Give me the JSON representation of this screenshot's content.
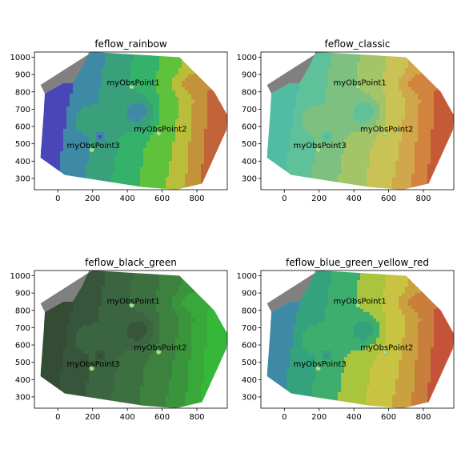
{
  "chart_data": [
    {
      "type": "contour",
      "title": "feflow_rainbow",
      "colors": [
        "#5b3f95",
        "#4846b8",
        "#3e8aa6",
        "#3aa07c",
        "#34b26a",
        "#5fc23c",
        "#b9bd3a",
        "#c4923a",
        "#c2643a"
      ],
      "fine_scale": false,
      "xlim": [
        -135,
        975
      ],
      "ylim": [
        235,
        1030
      ],
      "xticks": [
        0,
        200,
        400,
        600,
        800
      ],
      "yticks": [
        300,
        400,
        500,
        600,
        700,
        800,
        900,
        1000
      ],
      "points": [
        {
          "name": "myObsPoint1",
          "x": 425,
          "y": 830
        },
        {
          "name": "myObsPoint2",
          "x": 580,
          "y": 560
        },
        {
          "name": "myObsPoint3",
          "x": 195,
          "y": 465
        }
      ]
    },
    {
      "type": "contour",
      "title": "feflow_classic",
      "colors": [
        "#3fa6b8",
        "#4fbca3",
        "#5fc19a",
        "#7dc080",
        "#a3c567",
        "#c9c356",
        "#d2a64a",
        "#d2843f",
        "#c45a36"
      ],
      "fine_scale": false,
      "xlim": [
        -135,
        975
      ],
      "ylim": [
        235,
        1030
      ],
      "xticks": [
        0,
        200,
        400,
        600,
        800
      ],
      "yticks": [
        300,
        400,
        500,
        600,
        700,
        800,
        900,
        1000
      ],
      "points": [
        {
          "name": "myObsPoint1",
          "x": 425,
          "y": 830
        },
        {
          "name": "myObsPoint2",
          "x": 580,
          "y": 560
        },
        {
          "name": "myObsPoint3",
          "x": 195,
          "y": 465
        }
      ]
    },
    {
      "type": "contour",
      "title": "feflow_black_green",
      "colors": [
        "#2e372e",
        "#344b34",
        "#37553a",
        "#3b6440",
        "#3d7041",
        "#3c823e",
        "#3a943c",
        "#38a83b",
        "#35b83a"
      ],
      "fine_scale": true,
      "xlim": [
        -135,
        975
      ],
      "ylim": [
        235,
        1030
      ],
      "xticks": [
        0,
        200,
        400,
        600,
        800
      ],
      "yticks": [
        300,
        400,
        500,
        600,
        700,
        800,
        900,
        1000
      ],
      "points": [
        {
          "name": "myObsPoint1",
          "x": 425,
          "y": 830
        },
        {
          "name": "myObsPoint2",
          "x": 580,
          "y": 560
        },
        {
          "name": "myObsPoint3",
          "x": 195,
          "y": 465
        }
      ]
    },
    {
      "type": "contour",
      "title": "feflow_blue_green_yellow_red",
      "colors": [
        "#4a48b8",
        "#3e8aa6",
        "#34a37d",
        "#3dae6e",
        "#a9c53d",
        "#c8c343",
        "#c9a23f",
        "#c97f3c",
        "#c5533a"
      ],
      "fine_scale": false,
      "xlim": [
        -135,
        975
      ],
      "ylim": [
        235,
        1030
      ],
      "xticks": [
        0,
        200,
        400,
        600,
        800
      ],
      "yticks": [
        300,
        400,
        500,
        600,
        700,
        800,
        900,
        1000
      ],
      "points": [
        {
          "name": "myObsPoint1",
          "x": 425,
          "y": 830
        },
        {
          "name": "myObsPoint2",
          "x": 580,
          "y": 560
        },
        {
          "name": "myObsPoint3",
          "x": 195,
          "y": 465
        }
      ]
    }
  ]
}
